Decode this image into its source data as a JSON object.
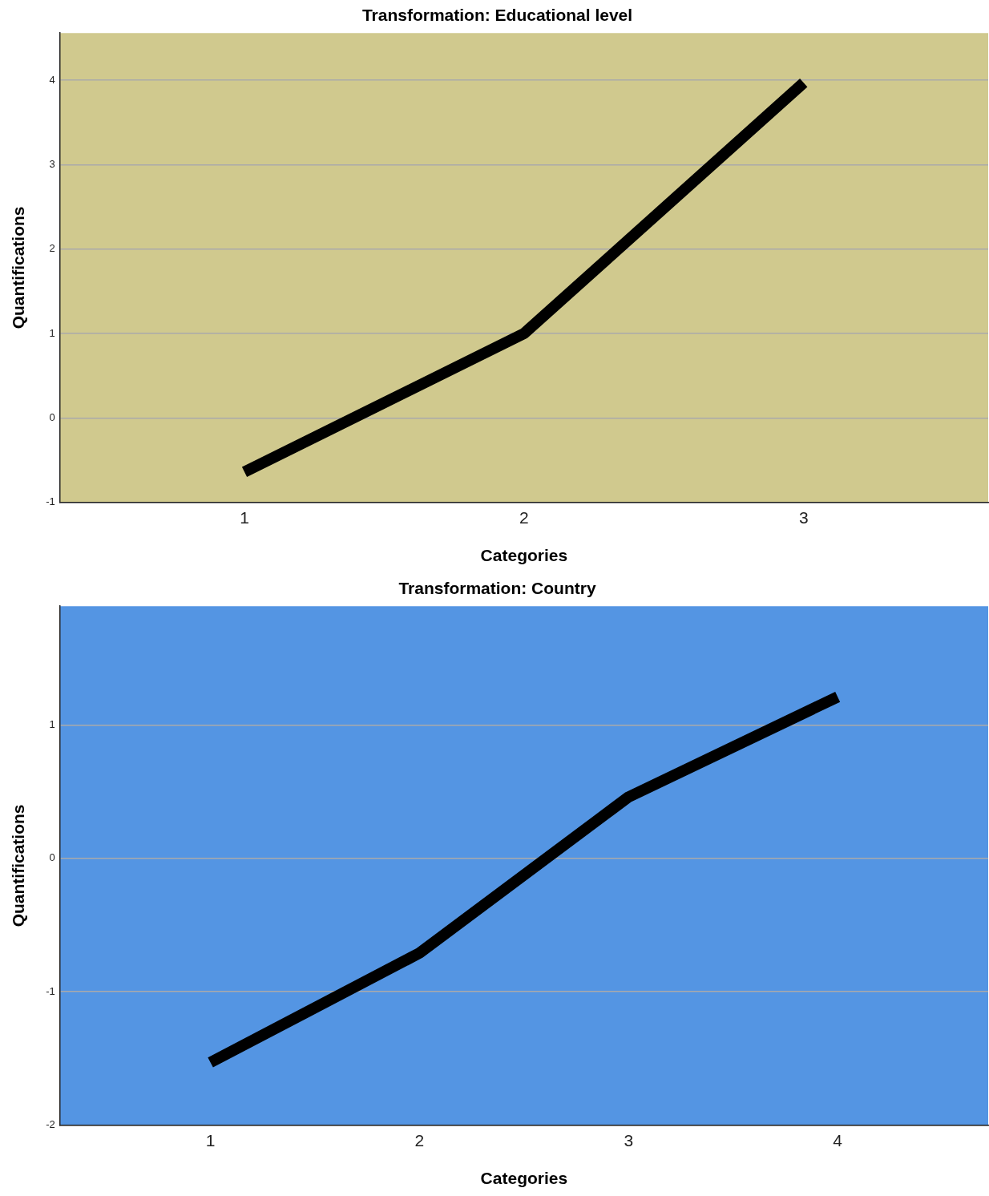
{
  "chart_data": [
    {
      "type": "line",
      "title": "Transformation: Educational level",
      "xlabel": "Categories",
      "ylabel": "Quantifications",
      "x": [
        1,
        2,
        3
      ],
      "xlim": [
        0.34,
        3.66
      ],
      "xticks": [
        1,
        2,
        3
      ],
      "ylim": [
        -1,
        4.56
      ],
      "yticks": [
        -1,
        0,
        1,
        2,
        3,
        4
      ],
      "grid": "y",
      "legend": false,
      "marker": "none",
      "line_style": "solid",
      "series": [
        {
          "color": "#000000",
          "values": [
            -0.64,
            1.0,
            3.97
          ]
        }
      ]
    },
    {
      "type": "line",
      "title": "Transformation: Country",
      "xlabel": "Categories",
      "ylabel": "Quantifications",
      "x": [
        1,
        2,
        3,
        4
      ],
      "xlim": [
        0.28,
        4.72
      ],
      "xticks": [
        1,
        2,
        3,
        4
      ],
      "ylim": [
        -2,
        1.89
      ],
      "yticks": [
        -2,
        -1,
        0,
        1
      ],
      "grid": "y",
      "legend": false,
      "marker": "none",
      "line_style": "solid",
      "series": [
        {
          "color": "#000000",
          "values": [
            -1.53,
            -0.71,
            0.46,
            1.21
          ]
        }
      ]
    }
  ]
}
